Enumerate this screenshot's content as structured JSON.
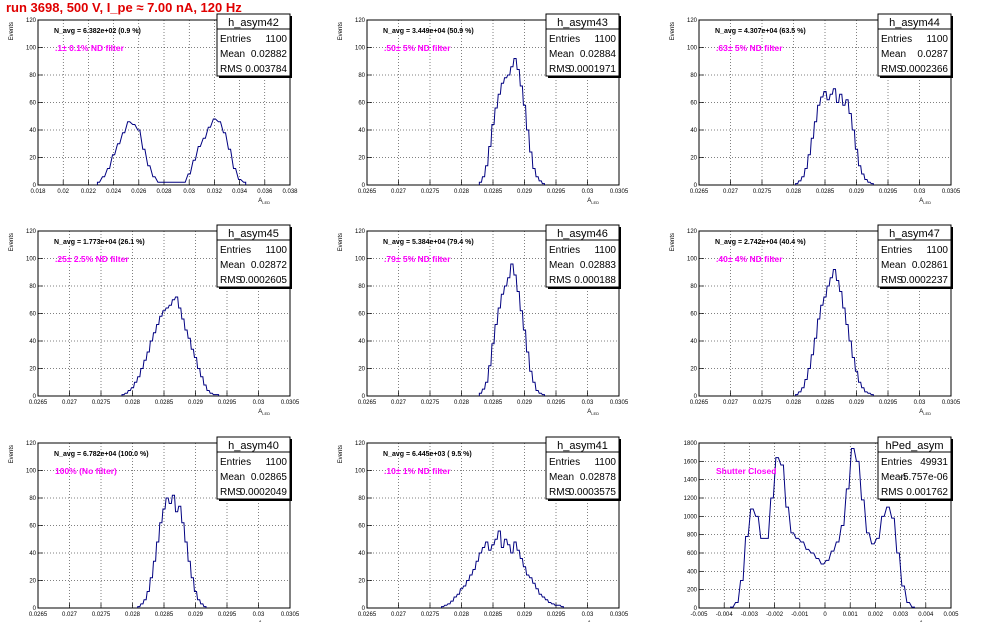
{
  "page": {
    "title": "run 3698,   500 V, I_pe ≈ 7.00 nA, 120 Hz"
  },
  "colors": {
    "hist": "#000080",
    "note": "#ff00ff",
    "title": "#e00000",
    "grid": "#000000"
  },
  "chart_data": [
    {
      "type": "histogram",
      "name": "h_asym42",
      "navg": "N_avg = 6.382e+02 (0.9 %)",
      "note": ".1± 0.1% ND filter",
      "stats": [
        [
          "Entries",
          "1100"
        ],
        [
          "Mean",
          "0.02882"
        ],
        [
          "RMS",
          "0.003784"
        ]
      ],
      "xlabel": "A_LED",
      "ylabel": "Events",
      "xlim": [
        0.018,
        0.038
      ],
      "ylim": [
        0,
        120
      ],
      "xticks": [
        "0.018",
        "0.02",
        "0.022",
        "0.024",
        "0.026",
        "0.028",
        "0.03",
        "0.032",
        "0.034",
        "0.036",
        "0.038"
      ],
      "yticks": [
        "0",
        "20",
        "40",
        "60",
        "80",
        "100",
        "120"
      ],
      "nbins": 120,
      "x": [
        0.0228,
        0.0232,
        0.0236,
        0.024,
        0.0244,
        0.0248,
        0.0252,
        0.0256,
        0.026,
        0.0264,
        0.0268,
        0.0272,
        0.0276,
        0.0296,
        0.03,
        0.0304,
        0.0308,
        0.0312,
        0.0316,
        0.032,
        0.0324,
        0.0328,
        0.0332,
        0.0336,
        0.034,
        0.0344
      ],
      "y": [
        2,
        6,
        12,
        22,
        30,
        38,
        46,
        44,
        40,
        26,
        14,
        6,
        2,
        2,
        8,
        18,
        28,
        34,
        42,
        48,
        46,
        38,
        26,
        12,
        4,
        2
      ]
    },
    {
      "type": "histogram",
      "name": "h_asym43",
      "navg": "N_avg = 3.449e+04 (50.9 %)",
      "note": ".50± 5% ND filter",
      "stats": [
        [
          "Entries",
          "1100"
        ],
        [
          "Mean",
          "0.02884"
        ],
        [
          "RMS",
          "0.0001971"
        ]
      ],
      "xlabel": "A_LED",
      "ylabel": "Events",
      "xlim": [
        0.0265,
        0.0305
      ],
      "ylim": [
        0,
        120
      ],
      "xticks": [
        "0.0265",
        "0.027",
        "0.0275",
        "0.028",
        "0.0285",
        "0.029",
        "0.0295",
        "0.03",
        "0.0305"
      ],
      "yticks": [
        "0",
        "20",
        "40",
        "60",
        "80",
        "100",
        "120"
      ],
      "nbins": 120,
      "x": [
        0.0283,
        0.02835,
        0.0284,
        0.02845,
        0.0285,
        0.02855,
        0.0286,
        0.02865,
        0.0287,
        0.02875,
        0.0288,
        0.02885,
        0.0289,
        0.02895,
        0.029,
        0.02905,
        0.0291,
        0.02915,
        0.0292,
        0.02925,
        0.0293
      ],
      "y": [
        2,
        6,
        14,
        28,
        44,
        56,
        66,
        74,
        78,
        80,
        86,
        92,
        84,
        72,
        58,
        40,
        24,
        12,
        6,
        3,
        1
      ]
    },
    {
      "type": "histogram",
      "name": "h_asym44",
      "navg": "N_avg = 4.307e+04 (63.5 %)",
      "note": ".63± 5% ND filter",
      "stats": [
        [
          "Entries",
          "1100"
        ],
        [
          "Mean",
          "0.0287"
        ],
        [
          "RMS",
          "0.0002366"
        ]
      ],
      "xlabel": "A_LED",
      "ylabel": "Events",
      "xlim": [
        0.0265,
        0.0305
      ],
      "ylim": [
        0,
        120
      ],
      "xticks": [
        "0.0265",
        "0.027",
        "0.0275",
        "0.028",
        "0.0285",
        "0.029",
        "0.0295",
        "0.03",
        "0.0305"
      ],
      "yticks": [
        "0",
        "20",
        "40",
        "60",
        "80",
        "100",
        "120"
      ],
      "nbins": 120,
      "x": [
        0.02805,
        0.0281,
        0.02815,
        0.0282,
        0.02825,
        0.0283,
        0.02835,
        0.0284,
        0.02845,
        0.0285,
        0.02855,
        0.0286,
        0.02865,
        0.0287,
        0.02875,
        0.0288,
        0.02885,
        0.0289,
        0.02895,
        0.029,
        0.02905,
        0.0291,
        0.02915,
        0.0292,
        0.02925
      ],
      "y": [
        1,
        3,
        6,
        12,
        22,
        34,
        46,
        58,
        64,
        68,
        62,
        66,
        70,
        60,
        66,
        58,
        62,
        52,
        40,
        26,
        14,
        8,
        4,
        2,
        1
      ]
    },
    {
      "type": "histogram",
      "name": "h_asym45",
      "navg": "N_avg = 1.773e+04 (26.1 %)",
      "note": ".25± 2.5% ND filter",
      "stats": [
        [
          "Entries",
          "1100"
        ],
        [
          "Mean",
          "0.02872"
        ],
        [
          "RMS",
          "0.0002605"
        ]
      ],
      "xlabel": "A_LED",
      "ylabel": "Events",
      "xlim": [
        0.0265,
        0.0305
      ],
      "ylim": [
        0,
        120
      ],
      "xticks": [
        "0.0265",
        "0.027",
        "0.0275",
        "0.028",
        "0.0285",
        "0.029",
        "0.0295",
        "0.03",
        "0.0305"
      ],
      "yticks": [
        "0",
        "20",
        "40",
        "60",
        "80",
        "100",
        "120"
      ],
      "nbins": 120,
      "x": [
        0.02785,
        0.0279,
        0.02795,
        0.028,
        0.02805,
        0.0281,
        0.02815,
        0.0282,
        0.02825,
        0.0283,
        0.02835,
        0.0284,
        0.02845,
        0.0285,
        0.02855,
        0.0286,
        0.02865,
        0.0287,
        0.02875,
        0.0288,
        0.02885,
        0.0289,
        0.02895,
        0.029,
        0.02905,
        0.0291,
        0.02915,
        0.0292,
        0.02925,
        0.0293,
        0.02935
      ],
      "y": [
        1,
        2,
        4,
        6,
        10,
        14,
        20,
        26,
        32,
        40,
        46,
        52,
        58,
        62,
        64,
        66,
        70,
        72,
        64,
        56,
        48,
        42,
        34,
        28,
        20,
        14,
        8,
        4,
        2,
        1,
        1
      ]
    },
    {
      "type": "histogram",
      "name": "h_asym46",
      "navg": "N_avg = 5.384e+04 (79.4 %)",
      "note": ".79± 5% ND filter",
      "stats": [
        [
          "Entries",
          "1100"
        ],
        [
          "Mean",
          "0.02883"
        ],
        [
          "RMS",
          "0.000188"
        ]
      ],
      "xlabel": "A_LED",
      "ylabel": "Events",
      "xlim": [
        0.0265,
        0.0305
      ],
      "ylim": [
        0,
        120
      ],
      "xticks": [
        "0.0265",
        "0.027",
        "0.0275",
        "0.028",
        "0.0285",
        "0.029",
        "0.0295",
        "0.03",
        "0.0305"
      ],
      "yticks": [
        "0",
        "20",
        "40",
        "60",
        "80",
        "100",
        "120"
      ],
      "nbins": 120,
      "x": [
        0.0283,
        0.02835,
        0.0284,
        0.02845,
        0.0285,
        0.02855,
        0.0286,
        0.02865,
        0.0287,
        0.02875,
        0.0288,
        0.02885,
        0.0289,
        0.02895,
        0.029,
        0.02905,
        0.0291,
        0.02915,
        0.0292,
        0.02925,
        0.0293
      ],
      "y": [
        2,
        5,
        10,
        22,
        38,
        52,
        64,
        74,
        80,
        86,
        96,
        88,
        76,
        62,
        48,
        32,
        18,
        10,
        4,
        2,
        1
      ]
    },
    {
      "type": "histogram",
      "name": "h_asym47",
      "navg": "N_avg = 2.742e+04 (40.4 %)",
      "note": ".40± 4% ND filter",
      "stats": [
        [
          "Entries",
          "1100"
        ],
        [
          "Mean",
          "0.02861"
        ],
        [
          "RMS",
          "0.0002237"
        ]
      ],
      "xlabel": "A_LED",
      "ylabel": "Events",
      "xlim": [
        0.0265,
        0.0305
      ],
      "ylim": [
        0,
        120
      ],
      "xticks": [
        "0.0265",
        "0.027",
        "0.0275",
        "0.028",
        "0.0285",
        "0.029",
        "0.0295",
        "0.03",
        "0.0305"
      ],
      "yticks": [
        "0",
        "20",
        "40",
        "60",
        "80",
        "100",
        "120"
      ],
      "nbins": 120,
      "x": [
        0.02805,
        0.0281,
        0.02815,
        0.0282,
        0.02825,
        0.0283,
        0.02835,
        0.0284,
        0.02845,
        0.0285,
        0.02855,
        0.0286,
        0.02865,
        0.0287,
        0.02875,
        0.0288,
        0.02885,
        0.0289,
        0.02895,
        0.029,
        0.02905,
        0.0291,
        0.02915,
        0.0292,
        0.02925
      ],
      "y": [
        1,
        3,
        6,
        12,
        20,
        30,
        42,
        56,
        66,
        72,
        80,
        86,
        92,
        84,
        76,
        64,
        52,
        40,
        28,
        18,
        10,
        6,
        3,
        2,
        1
      ]
    },
    {
      "type": "histogram",
      "name": "h_asym40",
      "navg": "N_avg = 6.782e+04 (100.0 %)",
      "note": "100% (No filter)",
      "stats": [
        [
          "Entries",
          "1100"
        ],
        [
          "Mean",
          "0.02865"
        ],
        [
          "RMS",
          "0.0002049"
        ]
      ],
      "xlabel": "A_LED",
      "ylabel": "Events",
      "xlim": [
        0.0265,
        0.0305
      ],
      "ylim": [
        0,
        120
      ],
      "xticks": [
        "0.0265",
        "0.027",
        "0.0275",
        "0.028",
        "0.0285",
        "0.029",
        "0.0295",
        "0.03",
        "0.0305"
      ],
      "yticks": [
        "0",
        "20",
        "40",
        "60",
        "80",
        "100",
        "120"
      ],
      "nbins": 120,
      "x": [
        0.0281,
        0.02815,
        0.0282,
        0.02825,
        0.0283,
        0.02835,
        0.0284,
        0.02845,
        0.0285,
        0.02855,
        0.0286,
        0.02865,
        0.0287,
        0.02875,
        0.0288,
        0.02885,
        0.0289,
        0.02895,
        0.029,
        0.02905,
        0.0291,
        0.02915
      ],
      "y": [
        1,
        3,
        6,
        12,
        22,
        34,
        48,
        62,
        72,
        80,
        76,
        82,
        70,
        74,
        62,
        48,
        34,
        22,
        12,
        6,
        3,
        1
      ]
    },
    {
      "type": "histogram",
      "name": "h_asym41",
      "navg": "N_avg = 6.445e+03 ( 9.5 %)",
      "note": ".10± 1% ND filter",
      "stats": [
        [
          "Entries",
          "1100"
        ],
        [
          "Mean",
          "0.02878"
        ],
        [
          "RMS",
          "0.0003575"
        ]
      ],
      "xlabel": "A_LED",
      "ylabel": "Events",
      "xlim": [
        0.0265,
        0.0305
      ],
      "ylim": [
        0,
        120
      ],
      "xticks": [
        "0.0265",
        "0.027",
        "0.0275",
        "0.028",
        "0.0285",
        "0.029",
        "0.0295",
        "0.03",
        "0.0305"
      ],
      "yticks": [
        "0",
        "20",
        "40",
        "60",
        "80",
        "100",
        "120"
      ],
      "nbins": 120,
      "x": [
        0.0277,
        0.02775,
        0.0278,
        0.02785,
        0.0279,
        0.02795,
        0.028,
        0.02805,
        0.0281,
        0.02815,
        0.0282,
        0.02825,
        0.0283,
        0.02835,
        0.0284,
        0.02845,
        0.0285,
        0.02855,
        0.0286,
        0.02865,
        0.0287,
        0.02875,
        0.0288,
        0.02885,
        0.0289,
        0.02895,
        0.029,
        0.02905,
        0.0291,
        0.02915,
        0.0292,
        0.02925,
        0.0293,
        0.02935,
        0.0294,
        0.02945,
        0.0295,
        0.02955,
        0.0296
      ],
      "y": [
        1,
        2,
        3,
        5,
        8,
        10,
        14,
        16,
        20,
        24,
        28,
        34,
        40,
        44,
        48,
        42,
        46,
        50,
        56,
        44,
        50,
        46,
        40,
        48,
        42,
        36,
        30,
        24,
        22,
        18,
        14,
        10,
        8,
        6,
        4,
        3,
        2,
        2,
        1
      ]
    },
    {
      "type": "histogram",
      "name": "hPed_asym",
      "navg": "",
      "note": "Shutter Closed",
      "stats": [
        [
          "Entries",
          "49931"
        ],
        [
          "Mean",
          "-5.757e-06"
        ],
        [
          "RMS",
          "0.001762"
        ]
      ],
      "xlabel": "A_LED",
      "ylabel": "",
      "xlim": [
        -0.005,
        0.005
      ],
      "ylim": [
        0,
        1800
      ],
      "xticks": [
        "-0.005",
        "-0.004",
        "-0.003",
        "-0.002",
        "-0.001",
        "0",
        "0.001",
        "0.002",
        "0.003",
        "0.004",
        "0.005"
      ],
      "yticks": [
        "0",
        "200",
        "400",
        "600",
        "800",
        "1000",
        "1200",
        "1400",
        "1600",
        "1800"
      ],
      "nbins": 100,
      "x": [
        -0.0037,
        -0.0035,
        -0.0033,
        -0.0031,
        -0.0029,
        -0.0027,
        -0.0025,
        -0.0023,
        -0.0021,
        -0.0019,
        -0.0017,
        -0.0015,
        -0.0013,
        -0.0011,
        -0.0009,
        -0.0007,
        -0.0005,
        -0.0003,
        -0.0001,
        0.0001,
        0.0003,
        0.0005,
        0.0007,
        0.0009,
        0.0011,
        0.0013,
        0.0015,
        0.0017,
        0.0019,
        0.0021,
        0.0023,
        0.0025,
        0.0027,
        0.0029,
        0.0031,
        0.0033,
        0.0035
      ],
      "y": [
        10,
        60,
        300,
        780,
        1080,
        1000,
        760,
        760,
        1200,
        1640,
        1560,
        1100,
        820,
        760,
        720,
        640,
        600,
        540,
        480,
        520,
        620,
        720,
        900,
        1300,
        1740,
        1600,
        1180,
        820,
        700,
        760,
        1000,
        1100,
        980,
        600,
        240,
        60,
        10
      ]
    }
  ]
}
